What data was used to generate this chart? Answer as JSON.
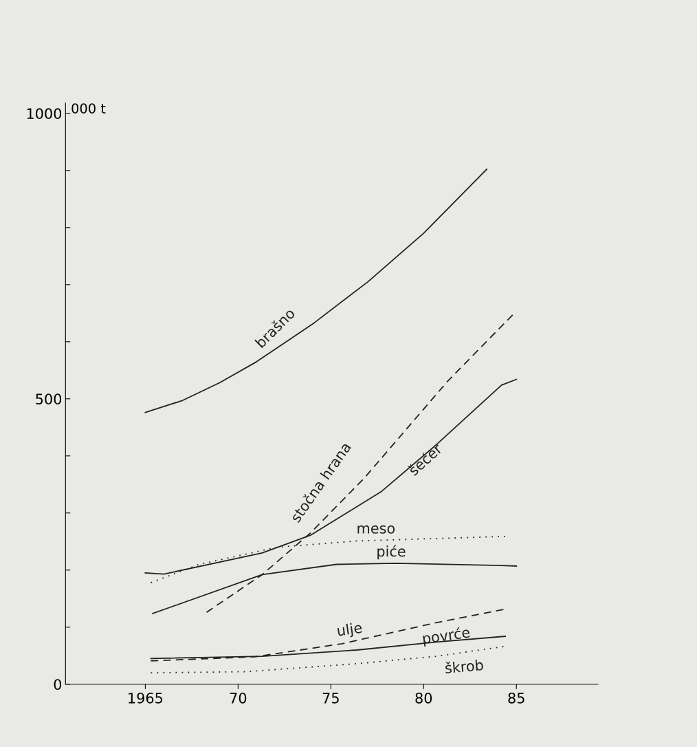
{
  "chart_data": {
    "type": "line",
    "ylabel": "000 t",
    "xlim": [
      1960.7,
      1989.4
    ],
    "xticks": [
      {
        "value": 1965,
        "label": "1965"
      },
      {
        "value": 1970,
        "label": "70"
      },
      {
        "value": 1975,
        "label": "75"
      },
      {
        "value": 1980,
        "label": "80"
      },
      {
        "value": 1985,
        "label": "85"
      }
    ],
    "ylim": [
      0,
      1018
    ],
    "yticks": [
      0,
      {
        "value": 100,
        "label": null
      },
      {
        "value": 200,
        "label": null
      },
      {
        "value": 300,
        "label": null
      },
      {
        "value": 400,
        "label": null
      },
      500,
      {
        "value": 600,
        "label": null
      },
      {
        "value": 700,
        "label": null
      },
      {
        "value": 800,
        "label": null
      },
      {
        "value": 900,
        "label": null
      },
      1000
    ],
    "grid": false,
    "legend": false,
    "marker": "none",
    "series": [
      {
        "name": "brašno",
        "color": "#222222",
        "line_style": "solid",
        "x": [
          1965,
          1967,
          1969,
          1971,
          1974.1,
          1977,
          1980,
          1983.4
        ],
        "values": [
          476,
          497,
          528,
          565,
          633,
          705,
          790,
          902
        ]
      },
      {
        "name": "stočna hrana",
        "color": "#222222",
        "line_style": "dashed",
        "x": [
          1968.3,
          1971.3,
          1973.9,
          1976.8,
          1981.3,
          1984.8
        ],
        "values": [
          126,
          192,
          265,
          361,
          531,
          647
        ]
      },
      {
        "name": "šećer",
        "color": "#222222",
        "line_style": "solid",
        "x": [
          1965,
          1966,
          1971.3,
          1973.9,
          1977.7,
          1980.7,
          1984.2,
          1985
        ],
        "values": [
          195,
          193,
          230,
          261,
          337,
          420,
          524,
          534
        ]
      },
      {
        "name": "meso",
        "color": "#222222",
        "line_style": "dotted",
        "x": [
          1965.3,
          1967.9,
          1972.1,
          1976.4,
          1984.4
        ],
        "values": [
          178,
          210,
          240,
          251,
          259
        ]
      },
      {
        "name": "piće",
        "color": "#222222",
        "line_style": "solid",
        "x": [
          1965.4,
          1971.3,
          1975.3,
          1978.5,
          1984.2,
          1985
        ],
        "values": [
          124,
          192,
          210,
          212,
          208,
          207
        ]
      },
      {
        "name": "ulje",
        "color": "#222222",
        "line_style": "dashed",
        "x": [
          1965.3,
          1970.9,
          1975.6,
          1980.7,
          1984.3
        ],
        "values": [
          41,
          48,
          71,
          108,
          131
        ]
      },
      {
        "name": "povrće",
        "color": "#222222",
        "line_style": "solid",
        "x": [
          1965.3,
          1971.3,
          1976.4,
          1980.7,
          1984.4
        ],
        "values": [
          45,
          49,
          60,
          74,
          84
        ]
      },
      {
        "name": "škrob",
        "color": "#222222",
        "line_style": "dotted",
        "x": [
          1965.3,
          1970.4,
          1976.4,
          1980.7,
          1984.3
        ],
        "values": [
          20,
          22,
          36,
          49,
          66
        ]
      }
    ]
  }
}
